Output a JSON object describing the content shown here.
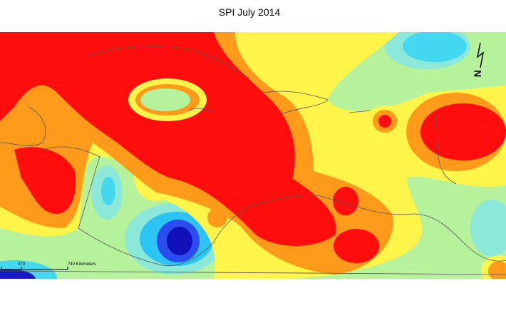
{
  "title": "SPI July 2014",
  "scale_bar": {
    "labels": [
      "370",
      "740 Kilometers"
    ]
  },
  "north_arrow": "N"
}
